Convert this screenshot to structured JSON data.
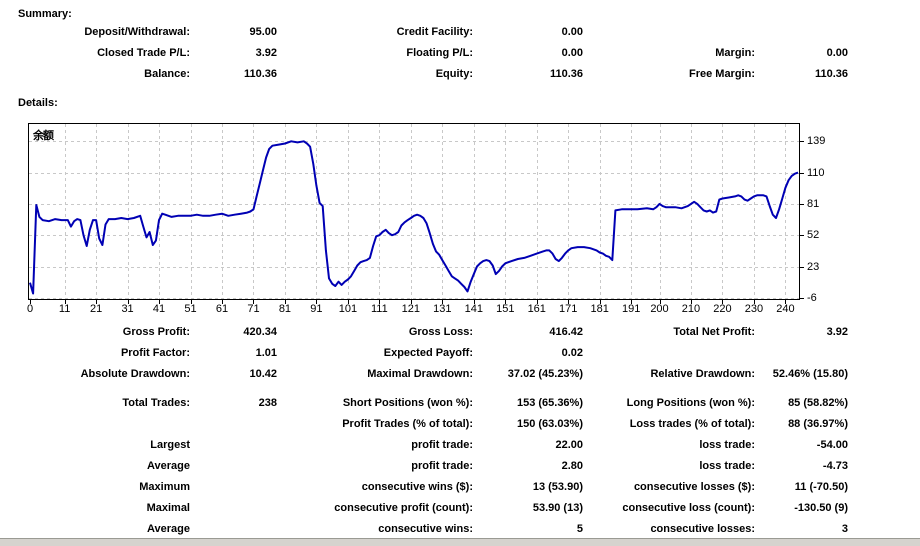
{
  "summary": {
    "heading": "Summary:",
    "rows": [
      {
        "l1": "Deposit/Withdrawal:",
        "v1": "95.00",
        "l2": "Credit Facility:",
        "v2": "0.00",
        "l3": "",
        "v3": ""
      },
      {
        "l1": "Closed Trade P/L:",
        "v1": "3.92",
        "l2": "Floating P/L:",
        "v2": "0.00",
        "l3": "Margin:",
        "v3": "0.00"
      },
      {
        "l1": "Balance:",
        "v1": "110.36",
        "l2": "Equity:",
        "v2": "110.36",
        "l3": "Free Margin:",
        "v3": "110.36"
      }
    ]
  },
  "details": {
    "heading": "Details:",
    "rows": [
      {
        "l1": "Gross Profit:",
        "v1": "420.34",
        "l2": "Gross Loss:",
        "v2": "416.42",
        "l3": "Total Net Profit:",
        "v3": "3.92"
      },
      {
        "l1": "Profit Factor:",
        "v1": "1.01",
        "l2": "Expected Payoff:",
        "v2": "0.02",
        "l3": "",
        "v3": ""
      },
      {
        "l1": "Absolute Drawdown:",
        "v1": "10.42",
        "l2": "Maximal Drawdown:",
        "v2": "37.02 (45.23%)",
        "l3": "Relative Drawdown:",
        "v3": "52.46% (15.80)"
      },
      {
        "l1": "Total Trades:",
        "v1": "238",
        "l2": "Short Positions (won %):",
        "v2": "153 (65.36%)",
        "l3": "Long Positions (won %):",
        "v3": "85 (58.82%)"
      },
      {
        "l1": "",
        "v1": "",
        "l2": "Profit Trades (% of total):",
        "v2": "150 (63.03%)",
        "l3": "Loss trades (% of total):",
        "v3": "88 (36.97%)"
      },
      {
        "l1": "Largest",
        "v1": "",
        "l2": "profit trade:",
        "v2": "22.00",
        "l3": "loss trade:",
        "v3": "-54.00"
      },
      {
        "l1": "Average",
        "v1": "",
        "l2": "profit trade:",
        "v2": "2.80",
        "l3": "loss trade:",
        "v3": "-4.73"
      },
      {
        "l1": "Maximum",
        "v1": "",
        "l2": "consecutive wins ($):",
        "v2": "13 (53.90)",
        "l3": "consecutive losses ($):",
        "v3": "11 (-70.50)"
      },
      {
        "l1": "Maximal",
        "v1": "",
        "l2": "consecutive profit (count):",
        "v2": "53.90 (13)",
        "l3": "consecutive loss (count):",
        "v3": "-130.50 (9)"
      },
      {
        "l1": "Average",
        "v1": "",
        "l2": "consecutive wins:",
        "v2": "5",
        "l3": "consecutive losses:",
        "v3": "3"
      }
    ]
  },
  "chart_data": {
    "type": "line",
    "title": "余额",
    "xlabel": "",
    "ylabel": "",
    "grid": true,
    "legend_position": "none",
    "x_ticks": [
      0,
      11,
      21,
      31,
      41,
      51,
      61,
      71,
      81,
      91,
      101,
      111,
      121,
      131,
      141,
      151,
      161,
      171,
      181,
      191,
      200,
      210,
      220,
      230,
      240
    ],
    "y_ticks": [
      139,
      110,
      81,
      52,
      23,
      -6
    ],
    "xlim": [
      0,
      244
    ],
    "ylim": [
      -8,
      156
    ],
    "series": [
      {
        "name": "余额",
        "points": [
          [
            0,
            8
          ],
          [
            1,
            -2
          ],
          [
            2,
            80
          ],
          [
            3,
            69
          ],
          [
            4,
            66
          ],
          [
            6,
            65
          ],
          [
            8,
            67
          ],
          [
            10,
            66
          ],
          [
            12,
            66
          ],
          [
            13,
            60
          ],
          [
            14,
            65
          ],
          [
            15,
            67
          ],
          [
            16,
            66
          ],
          [
            17,
            52
          ],
          [
            18,
            42
          ],
          [
            19,
            57
          ],
          [
            20,
            66
          ],
          [
            21,
            66
          ],
          [
            22,
            49
          ],
          [
            23,
            43
          ],
          [
            24,
            62
          ],
          [
            25,
            67
          ],
          [
            27,
            67
          ],
          [
            29,
            68
          ],
          [
            31,
            67
          ],
          [
            33,
            68
          ],
          [
            35,
            70
          ],
          [
            36,
            60
          ],
          [
            37,
            50
          ],
          [
            38,
            55
          ],
          [
            39,
            43
          ],
          [
            40,
            47
          ],
          [
            41,
            66
          ],
          [
            42,
            72
          ],
          [
            43,
            71
          ],
          [
            45,
            69
          ],
          [
            47,
            70
          ],
          [
            49,
            70
          ],
          [
            51,
            70
          ],
          [
            53,
            71
          ],
          [
            55,
            70
          ],
          [
            57,
            70
          ],
          [
            59,
            71
          ],
          [
            61,
            72
          ],
          [
            63,
            70
          ],
          [
            65,
            71
          ],
          [
            67,
            72
          ],
          [
            69,
            73
          ],
          [
            70,
            74
          ],
          [
            71,
            76
          ],
          [
            72,
            88
          ],
          [
            73,
            100
          ],
          [
            74,
            112
          ],
          [
            75,
            124
          ],
          [
            76,
            132
          ],
          [
            77,
            135
          ],
          [
            79,
            136
          ],
          [
            81,
            137
          ],
          [
            83,
            139
          ],
          [
            85,
            138
          ],
          [
            87,
            139
          ],
          [
            88,
            137
          ],
          [
            89,
            134
          ],
          [
            90,
            118
          ],
          [
            91,
            98
          ],
          [
            92,
            82
          ],
          [
            93,
            79
          ],
          [
            94,
            38
          ],
          [
            95,
            12
          ],
          [
            96,
            7
          ],
          [
            97,
            5
          ],
          [
            98,
            9
          ],
          [
            99,
            6
          ],
          [
            100,
            9
          ],
          [
            101,
            11
          ],
          [
            102,
            14
          ],
          [
            103,
            19
          ],
          [
            104,
            24
          ],
          [
            105,
            27
          ],
          [
            106,
            28
          ],
          [
            107,
            29
          ],
          [
            108,
            31
          ],
          [
            109,
            42
          ],
          [
            110,
            51
          ],
          [
            111,
            52
          ],
          [
            112,
            55
          ],
          [
            113,
            57
          ],
          [
            114,
            54
          ],
          [
            115,
            52
          ],
          [
            116,
            53
          ],
          [
            117,
            55
          ],
          [
            118,
            61
          ],
          [
            119,
            64
          ],
          [
            120,
            66
          ],
          [
            121,
            68
          ],
          [
            122,
            70
          ],
          [
            123,
            71
          ],
          [
            124,
            70
          ],
          [
            125,
            68
          ],
          [
            126,
            63
          ],
          [
            127,
            54
          ],
          [
            128,
            44
          ],
          [
            129,
            37
          ],
          [
            130,
            34
          ],
          [
            131,
            29
          ],
          [
            132,
            24
          ],
          [
            133,
            19
          ],
          [
            134,
            14
          ],
          [
            135,
            12
          ],
          [
            136,
            10
          ],
          [
            137,
            7
          ],
          [
            138,
            4
          ],
          [
            139,
            0
          ],
          [
            140,
            9
          ],
          [
            141,
            16
          ],
          [
            142,
            23
          ],
          [
            143,
            26
          ],
          [
            144,
            28
          ],
          [
            145,
            29
          ],
          [
            146,
            28
          ],
          [
            147,
            24
          ],
          [
            148,
            16
          ],
          [
            149,
            19
          ],
          [
            150,
            23
          ],
          [
            151,
            26
          ],
          [
            152,
            27
          ],
          [
            153,
            28
          ],
          [
            155,
            30
          ],
          [
            157,
            31
          ],
          [
            159,
            33
          ],
          [
            161,
            35
          ],
          [
            163,
            37
          ],
          [
            164,
            38
          ],
          [
            165,
            38
          ],
          [
            166,
            35
          ],
          [
            167,
            30
          ],
          [
            168,
            28
          ],
          [
            169,
            31
          ],
          [
            170,
            35
          ],
          [
            171,
            38
          ],
          [
            172,
            40
          ],
          [
            174,
            41
          ],
          [
            176,
            41
          ],
          [
            178,
            40
          ],
          [
            180,
            38
          ],
          [
            181,
            36
          ],
          [
            182,
            35
          ],
          [
            183,
            33
          ],
          [
            184,
            32
          ],
          [
            185,
            29
          ],
          [
            186,
            75
          ],
          [
            188,
            76
          ],
          [
            190,
            76
          ],
          [
            193,
            76
          ],
          [
            196,
            77
          ],
          [
            198,
            76
          ],
          [
            199,
            78
          ],
          [
            200,
            81
          ],
          [
            201,
            79
          ],
          [
            202,
            78
          ],
          [
            205,
            78
          ],
          [
            207,
            77
          ],
          [
            209,
            79
          ],
          [
            210,
            81
          ],
          [
            211,
            83
          ],
          [
            212,
            81
          ],
          [
            213,
            78
          ],
          [
            214,
            75
          ],
          [
            215,
            74
          ],
          [
            216,
            75
          ],
          [
            217,
            73
          ],
          [
            218,
            74
          ],
          [
            219,
            85
          ],
          [
            220,
            86
          ],
          [
            222,
            87
          ],
          [
            224,
            88
          ],
          [
            225,
            89
          ],
          [
            226,
            88
          ],
          [
            227,
            85
          ],
          [
            228,
            84
          ],
          [
            229,
            86
          ],
          [
            230,
            88
          ],
          [
            231,
            89
          ],
          [
            233,
            89
          ],
          [
            234,
            88
          ],
          [
            235,
            79
          ],
          [
            236,
            71
          ],
          [
            237,
            68
          ],
          [
            238,
            76
          ],
          [
            239,
            86
          ],
          [
            240,
            96
          ],
          [
            241,
            103
          ],
          [
            242,
            107
          ],
          [
            243,
            109
          ],
          [
            244,
            110
          ]
        ]
      }
    ]
  },
  "colors": {
    "line": "#0000B4",
    "grid": "#C8C8C8",
    "frame": "#000000",
    "background": "#FFFFFF",
    "window_strip": "#D6D3CE"
  }
}
